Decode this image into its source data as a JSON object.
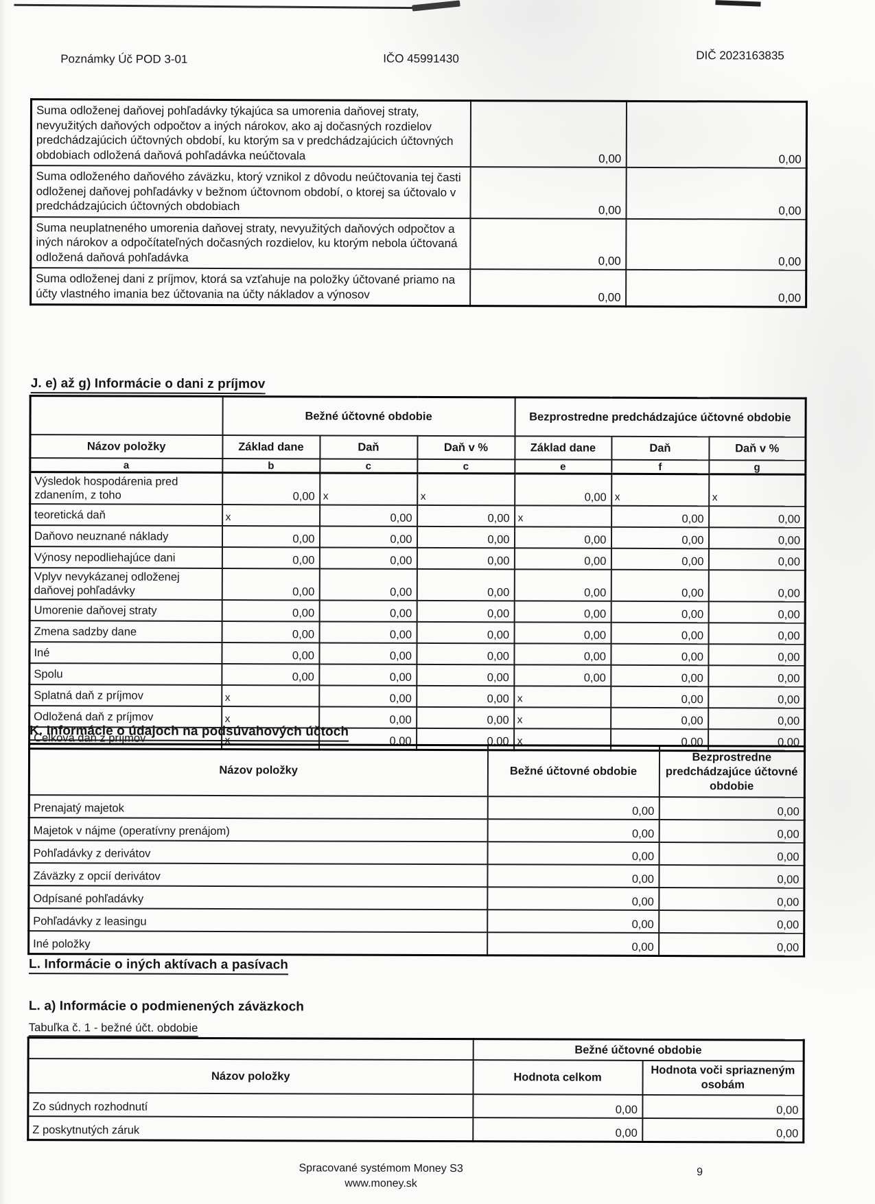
{
  "page": {
    "header": {
      "form_id": "Poznámky Úč POD 3-01",
      "ico": "IČO 45991430",
      "dic": "DIČ 2023163835"
    },
    "footer": {
      "line1": "Spracované systémom Money S3",
      "line2": "www.money.sk",
      "page_number": "9"
    }
  },
  "deferred_tax_table": {
    "rows": [
      {
        "label": "Suma odloženej daňovej pohľadávky týkajúca sa umorenia daňovej straty, nevyužitých daňových odpočtov a iných nárokov, ako aj dočasných rozdielov predchádzajúcich účtovných období, ku ktorým sa v predchádzajúcich účtovných obdobiach odložená daňová pohľadávka neúčtovala",
        "current": "0,00",
        "previous": "0,00"
      },
      {
        "label": "Suma odloženého daňového záväzku, ktorý vznikol z dôvodu neúčtovania tej časti odloženej daňovej pohľadávky v bežnom účtovnom období, o ktorej sa účtovalo v predchádzajúcich účtovných obdobiach",
        "current": "0,00",
        "previous": "0,00"
      },
      {
        "label": "Suma neuplatneného umorenia daňovej straty, nevyužitých daňových odpočtov a iných nárokov a odpočítateľných dočasných rozdielov, ku ktorým nebola účtovaná odložená daňová pohľadávka",
        "current": "0,00",
        "previous": "0,00"
      },
      {
        "label": "Suma odloženej dani z príjmov, ktorá sa vzťahuje na položky účtované priamo na účty vlastného imania bez účtovania na účty nákladov a výnosov",
        "current": "0,00",
        "previous": "0,00"
      }
    ]
  },
  "section_j": {
    "title": "J. e) až g) Informácie o  dani z príjmov",
    "table": {
      "group_current": "Bežné účtovné obdobie",
      "group_previous": "Bezprostredne predchádzajúce účtovné obdobie",
      "name_header": "Názov položky",
      "sub_headers": [
        "Základ dane",
        "Daň",
        "Daň v %",
        "Základ dane",
        "Daň",
        "Daň v %"
      ],
      "letter_row": [
        "a",
        "b",
        "c",
        "c",
        "e",
        "f",
        "g"
      ],
      "rows": [
        {
          "label": "Výsledok hospodárenia pred zdanením, z toho",
          "values": [
            "0,00",
            "x",
            "x",
            "0,00",
            "x",
            "x"
          ]
        },
        {
          "label": "teoretická daň",
          "values": [
            "x",
            "0,00",
            "0,00",
            "x",
            "0,00",
            "0,00"
          ]
        },
        {
          "label": "Daňovo neuznané náklady",
          "values": [
            "0,00",
            "0,00",
            "0,00",
            "0,00",
            "0,00",
            "0,00"
          ]
        },
        {
          "label": "Výnosy nepodliehajúce dani",
          "values": [
            "0,00",
            "0,00",
            "0,00",
            "0,00",
            "0,00",
            "0,00"
          ]
        },
        {
          "label": "Vplyv nevykázanej odloženej daňovej pohľadávky",
          "values": [
            "0,00",
            "0,00",
            "0,00",
            "0,00",
            "0,00",
            "0,00"
          ]
        },
        {
          "label": "Umorenie daňovej straty",
          "values": [
            "0,00",
            "0,00",
            "0,00",
            "0,00",
            "0,00",
            "0,00"
          ]
        },
        {
          "label": "Zmena sadzby dane",
          "values": [
            "0,00",
            "0,00",
            "0,00",
            "0,00",
            "0,00",
            "0,00"
          ]
        },
        {
          "label": "Iné",
          "values": [
            "0,00",
            "0,00",
            "0,00",
            "0,00",
            "0,00",
            "0,00"
          ]
        },
        {
          "label": "Spolu",
          "values": [
            "0,00",
            "0,00",
            "0,00",
            "0,00",
            "0,00",
            "0,00"
          ]
        },
        {
          "label": "Splatná daň z príjmov",
          "values": [
            "x",
            "0,00",
            "0,00",
            "x",
            "0,00",
            "0,00"
          ]
        },
        {
          "label": "Odložená daň z príjmov",
          "values": [
            "x",
            "0,00",
            "0,00",
            "x",
            "0,00",
            "0,00"
          ]
        },
        {
          "label": "Celková daň z príjmov",
          "values": [
            "x",
            "0,00",
            "0,00",
            "x",
            "0,00",
            "0,00"
          ]
        }
      ]
    }
  },
  "section_k": {
    "title": "K. Informácie o údajoch na podsúvahových účtoch",
    "table": {
      "name_header": "Názov položky",
      "col_current": "Bežné účtovné obdobie",
      "col_previous": "Bezprostredne predchádzajúce účtovné obdobie",
      "rows": [
        {
          "label": "Prenajatý majetok",
          "current": "0,00",
          "previous": "0,00"
        },
        {
          "label": "Majetok v nájme (operatívny prenájom)",
          "current": "0,00",
          "previous": "0,00"
        },
        {
          "label": "Pohľadávky z derivátov",
          "current": "0,00",
          "previous": "0,00"
        },
        {
          "label": "Záväzky z opcií derivátov",
          "current": "0,00",
          "previous": "0,00"
        },
        {
          "label": "Odpísané pohľadávky",
          "current": "0,00",
          "previous": "0,00"
        },
        {
          "label": "Pohľadávky z leasingu",
          "current": "0,00",
          "previous": "0,00"
        },
        {
          "label": "Iné položky",
          "current": "0,00",
          "previous": "0,00"
        }
      ]
    }
  },
  "section_l": {
    "title": "L. Informácie o iných aktívach a pasívach",
    "subtitle": "L. a) Informácie o podmienených záväzkoch",
    "table_caption": "Tabuľka č. 1 - bežné účt. obdobie",
    "table": {
      "name_header": "Názov položky",
      "group_header": "Bežné účtovné obdobie",
      "col_total": "Hodnota celkom",
      "col_related": "Hodnota voči spriazneným osobám",
      "rows": [
        {
          "label": "Zo súdnych rozhodnutí",
          "total": "0,00",
          "related": "0,00"
        },
        {
          "label": "Z poskytnutých záruk",
          "total": "0,00",
          "related": "0,00"
        }
      ]
    }
  }
}
